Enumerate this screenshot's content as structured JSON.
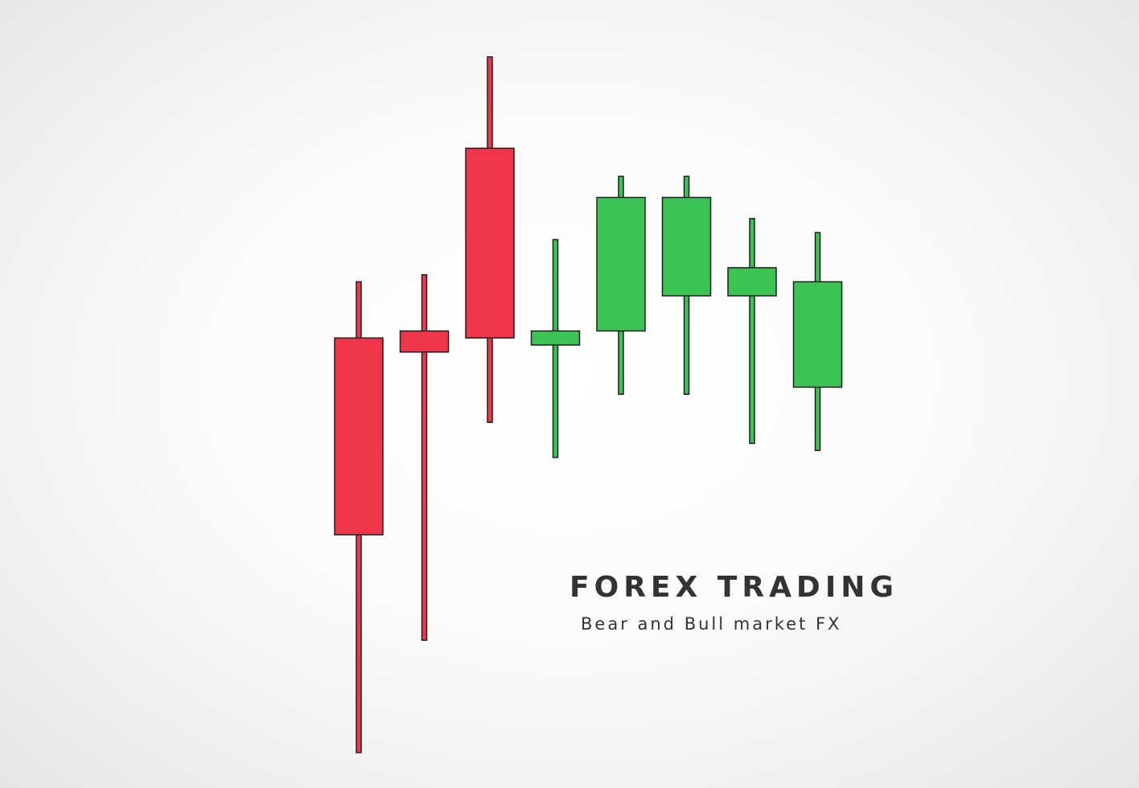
{
  "title": "FOREX TRADING",
  "subtitle": "Bear and Bull market FX",
  "colors": {
    "bear": "#f2364a",
    "bull": "#3bc454",
    "outline": "#1f1f1f",
    "text": "#333333"
  },
  "chart_data": {
    "type": "candlestick",
    "title": "FOREX TRADING",
    "subtitle": "Bear and Bull market FX",
    "grid": false,
    "legend": "none",
    "ylim": [
      0,
      100
    ],
    "candles": [
      {
        "open": 59,
        "close": 31,
        "high": 67,
        "low": 0,
        "color": "bear"
      },
      {
        "open": 60,
        "close": 57,
        "high": 68,
        "low": 16,
        "color": "bear"
      },
      {
        "open": 86,
        "close": 59,
        "high": 99,
        "low": 47,
        "color": "bear"
      },
      {
        "open": 58,
        "close": 60,
        "high": 73,
        "low": 42,
        "color": "bull"
      },
      {
        "open": 60,
        "close": 79,
        "high": 82,
        "low": 51,
        "color": "bull"
      },
      {
        "open": 65,
        "close": 79,
        "high": 82,
        "low": 51,
        "color": "bull"
      },
      {
        "open": 65,
        "close": 69,
        "high": 76,
        "low": 44,
        "color": "bull"
      },
      {
        "open": 52,
        "close": 67,
        "high": 74,
        "low": 43,
        "color": "bull"
      }
    ]
  }
}
